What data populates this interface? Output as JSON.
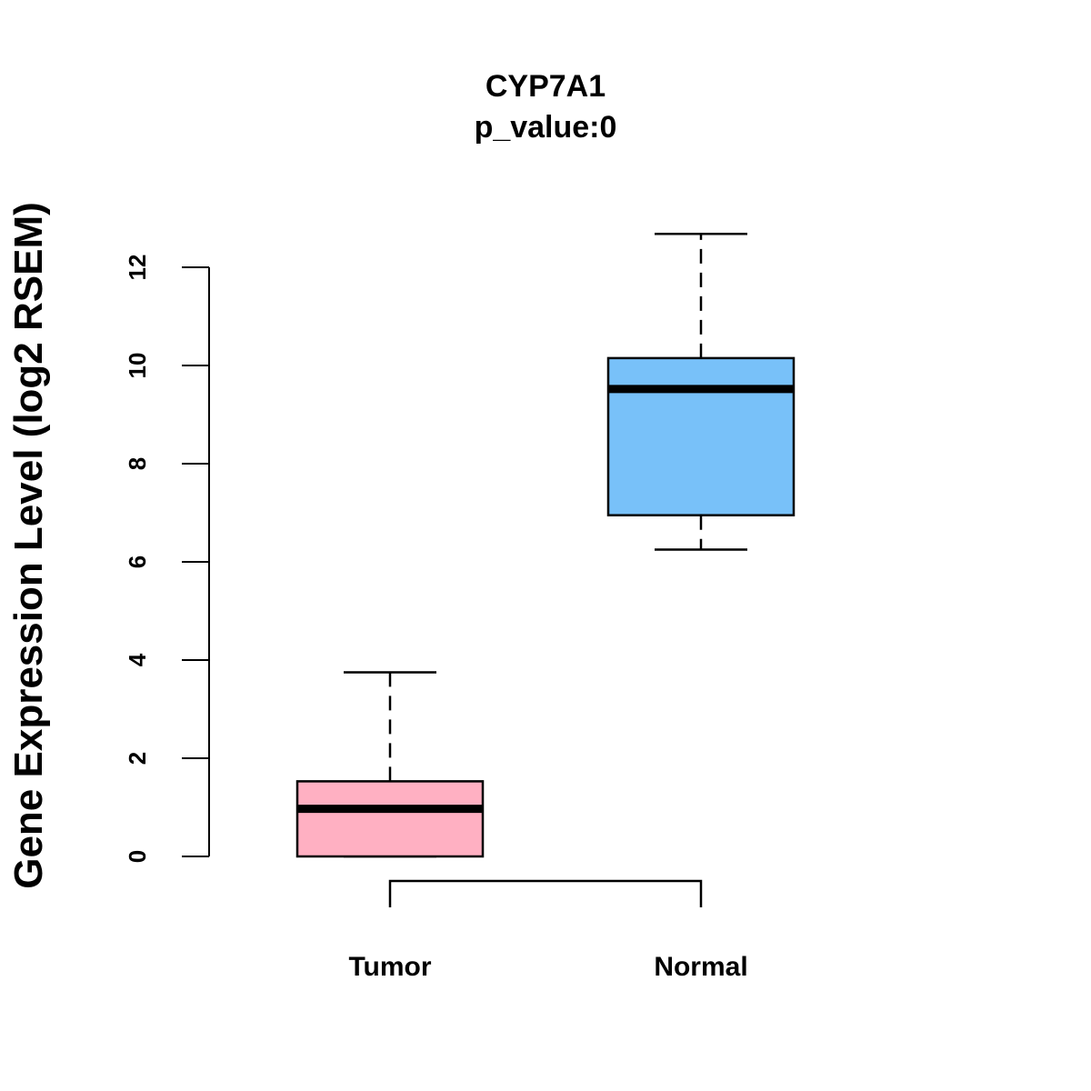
{
  "chart_data": {
    "type": "box",
    "title": "CYP7A1",
    "subtitle": "p_value:0",
    "ylabel": "Gene Expression Level (log2 RSEM)",
    "xlabel": "",
    "ylim": [
      0,
      12
    ],
    "yticks": [
      0,
      2,
      4,
      6,
      8,
      10,
      12
    ],
    "categories": [
      "Tumor",
      "Normal"
    ],
    "boxes": [
      {
        "name": "Tumor",
        "whisker_low": 0,
        "q1": 0,
        "median": 0.97,
        "q3": 1.53,
        "whisker_high": 3.75,
        "color": "#ffb0c2"
      },
      {
        "name": "Normal",
        "whisker_low": 6.25,
        "q1": 6.95,
        "median": 9.52,
        "q3": 10.15,
        "whisker_high": 12.68,
        "color": "#78c1f9"
      }
    ],
    "comparison": {
      "from": "Tumor",
      "to": "Normal"
    }
  }
}
